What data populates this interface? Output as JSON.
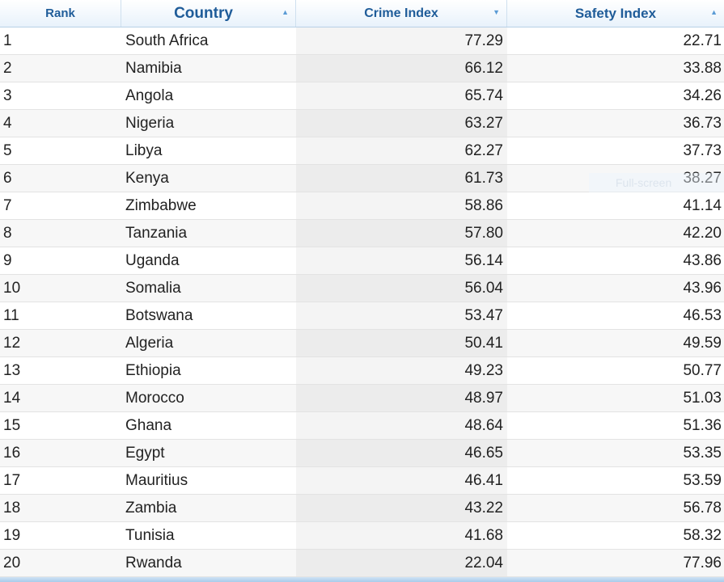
{
  "table": {
    "columns": [
      {
        "key": "rank",
        "label": "Rank",
        "sort": ""
      },
      {
        "key": "country",
        "label": "Country",
        "sort": "asc"
      },
      {
        "key": "crime",
        "label": "Crime Index",
        "sort": "desc"
      },
      {
        "key": "safety",
        "label": "Safety Index",
        "sort": "asc"
      }
    ],
    "rows": [
      [
        "1",
        "South Africa",
        "77.29",
        "22.71"
      ],
      [
        "2",
        "Namibia",
        "66.12",
        "33.88"
      ],
      [
        "3",
        "Angola",
        "65.74",
        "34.26"
      ],
      [
        "4",
        "Nigeria",
        "63.27",
        "36.73"
      ],
      [
        "5",
        "Libya",
        "62.27",
        "37.73"
      ],
      [
        "6",
        "Kenya",
        "61.73",
        "38.27"
      ],
      [
        "7",
        "Zimbabwe",
        "58.86",
        "41.14"
      ],
      [
        "8",
        "Tanzania",
        "57.80",
        "42.20"
      ],
      [
        "9",
        "Uganda",
        "56.14",
        "43.86"
      ],
      [
        "10",
        "Somalia",
        "56.04",
        "43.96"
      ],
      [
        "11",
        "Botswana",
        "53.47",
        "46.53"
      ],
      [
        "12",
        "Algeria",
        "50.41",
        "49.59"
      ],
      [
        "13",
        "Ethiopia",
        "49.23",
        "50.77"
      ],
      [
        "14",
        "Morocco",
        "48.97",
        "51.03"
      ],
      [
        "15",
        "Ghana",
        "48.64",
        "51.36"
      ],
      [
        "16",
        "Egypt",
        "46.65",
        "53.35"
      ],
      [
        "17",
        "Mauritius",
        "46.41",
        "53.59"
      ],
      [
        "18",
        "Zambia",
        "43.22",
        "56.78"
      ],
      [
        "19",
        "Tunisia",
        "41.68",
        "58.32"
      ],
      [
        "20",
        "Rwanda",
        "22.04",
        "77.96"
      ]
    ]
  },
  "overlay": {
    "text": "Full-screen"
  }
}
